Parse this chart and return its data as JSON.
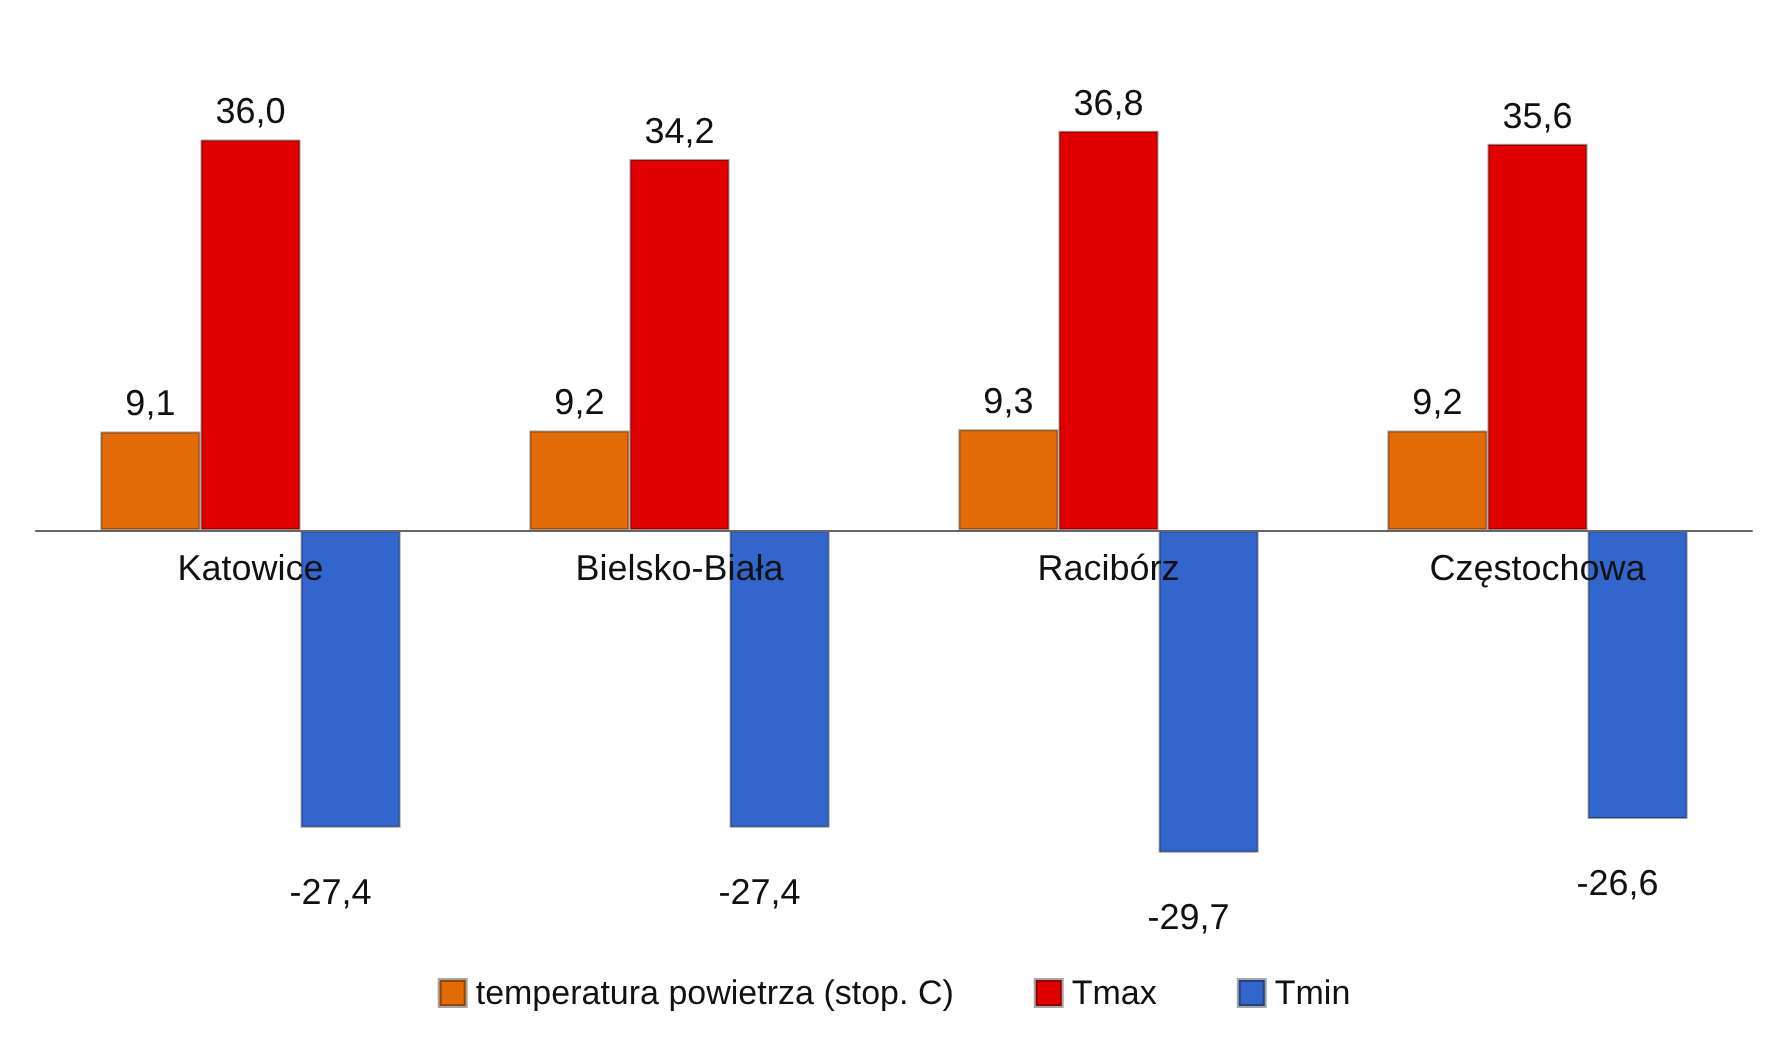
{
  "chart_data": {
    "type": "bar",
    "categories": [
      "Katowice",
      "Bielsko-Biała",
      "Racibórz",
      "Częstochowa"
    ],
    "series": [
      {
        "name": "temperatura powietrza (stop. C)",
        "color": "#e36c09",
        "values": [
          9.1,
          9.2,
          9.3,
          9.2
        ],
        "value_labels": [
          "9,1",
          "9,2",
          "9,3",
          "9,2"
        ]
      },
      {
        "name": "Tmax",
        "color": "#e00000",
        "values": [
          36.0,
          34.2,
          36.8,
          35.6
        ],
        "value_labels": [
          "36,0",
          "34,2",
          "36,8",
          "35,6"
        ]
      },
      {
        "name": "Tmin",
        "color": "#3366cc",
        "values": [
          -27.4,
          -27.4,
          -29.7,
          -26.6
        ],
        "value_labels": [
          "-27,4",
          "-27,4",
          "-29,7",
          "-26,6"
        ]
      }
    ],
    "legend": "bottom"
  }
}
